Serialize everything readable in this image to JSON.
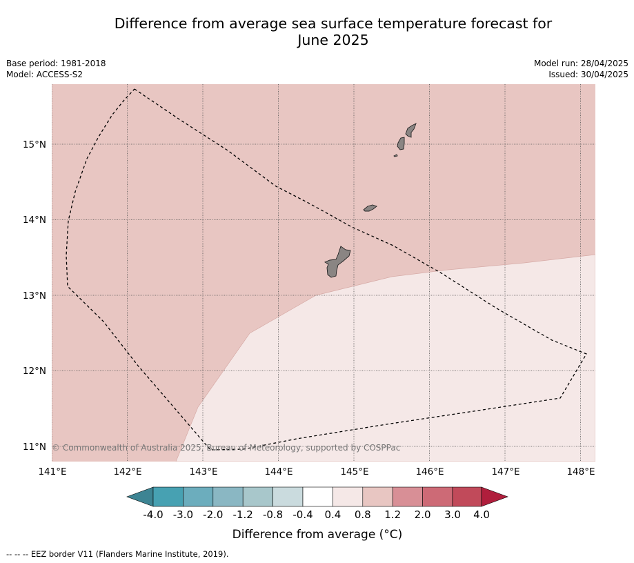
{
  "title_line1": "Difference from average sea surface temperature forecast for",
  "title_line2": "June 2025",
  "meta_left": {
    "base_period": "Base period: 1981-2018",
    "model": "Model: ACCESS-S2"
  },
  "meta_right": {
    "model_run": "Model run: 28/04/2025",
    "issued": "Issued: 30/04/2025"
  },
  "copyright": "© Commonwealth of Australia 2025, Bureau of Meteorology, supported by COSPPac",
  "lon_ticks": [
    "141°E",
    "142°E",
    "143°E",
    "144°E",
    "145°E",
    "146°E",
    "147°E",
    "148°E"
  ],
  "lat_ticks": [
    "15°N",
    "14°N",
    "13°N",
    "12°N",
    "11°N"
  ],
  "colorbar": {
    "title": "Difference from average (°C)",
    "labels": [
      "-4.0",
      "-3.0",
      "-2.0",
      "-1.2",
      "-0.8",
      "-0.4",
      "0.4",
      "0.8",
      "1.2",
      "2.0",
      "3.0",
      "4.0"
    ],
    "low_color": "#3d8493",
    "high_color": "#b01e3c",
    "colors": [
      "#47a1b2",
      "#6cadbd",
      "#8ab7c3",
      "#a8c7cb",
      "#cadbde",
      "#ffffff",
      "#f5e8e7",
      "#e8c6c2",
      "#d88f96",
      "#cd6a76",
      "#c14a5a"
    ]
  },
  "regions": [
    {
      "name": "warm-anomaly-0.8-1.2",
      "color": "#e8c6c2"
    },
    {
      "name": "warm-anomaly-0.4-0.8",
      "color": "#f5e8e7"
    }
  ],
  "footnote": "--  --  -- EEZ border V11 (Flanders Marine Institute, 2019)."
}
